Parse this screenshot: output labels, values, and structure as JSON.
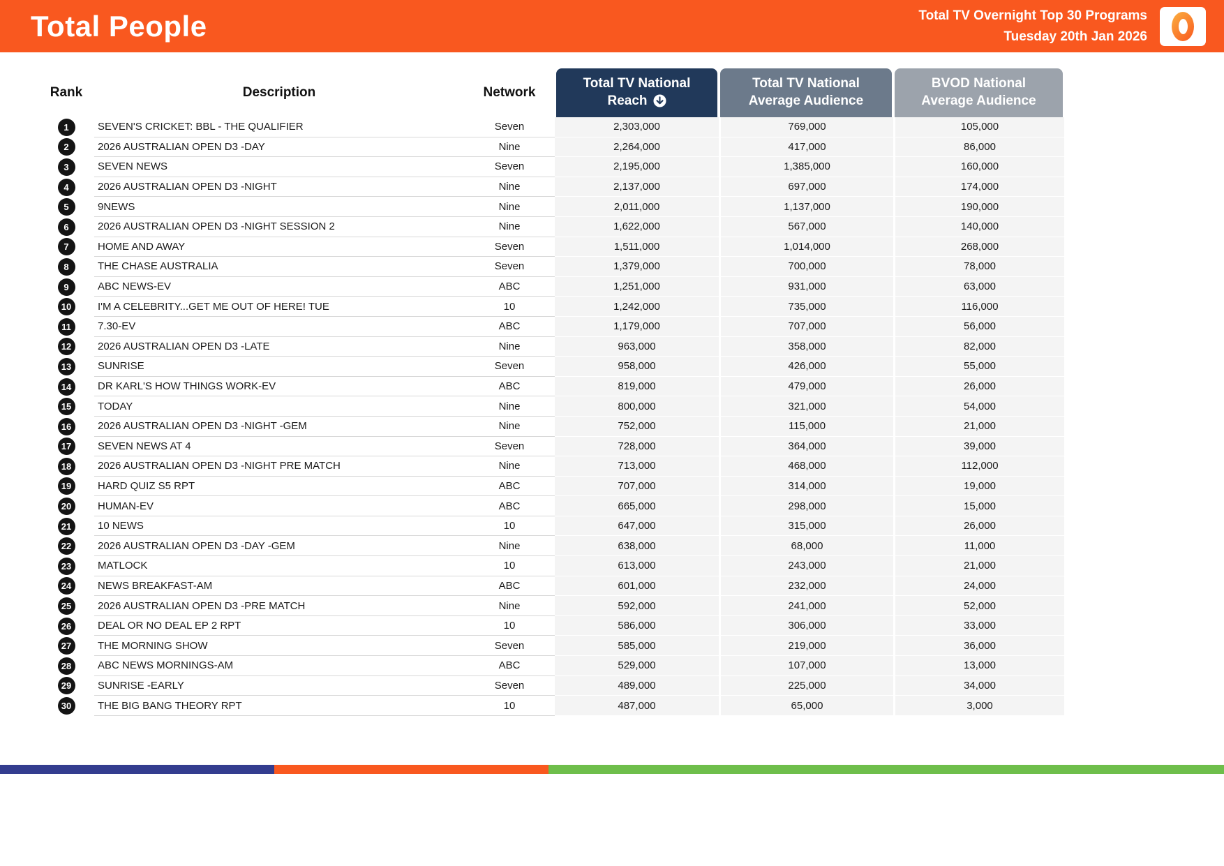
{
  "header": {
    "title": "Total People",
    "report_name": "Total TV Overnight Top 30 Programs",
    "report_date": "Tuesday 20th Jan 2026",
    "logo": "oztam-zero-logo"
  },
  "colors": {
    "orange": "#F9581F",
    "navy_header": "#21395A",
    "slate_header": "#6C7A8B",
    "gray_header": "#9CA3AC",
    "rank_badge": "#141414",
    "numeric_cell_bg": "#F4F4F4",
    "strip_navy": "#333D8F",
    "strip_orange": "#F9581F",
    "strip_green": "#6EBE4B"
  },
  "table": {
    "columns": {
      "rank": "Rank",
      "description": "Description",
      "network": "Network",
      "reach": {
        "line1": "Total TV National",
        "line2": "Reach"
      },
      "avg_audience": {
        "line1": "Total TV National",
        "line2": "Average Audience"
      },
      "bvod_audience": {
        "line1": "BVOD National",
        "line2": "Average Audience"
      }
    },
    "sort": {
      "column": "reach",
      "direction": "descending",
      "icon": "circle-arrow-down-icon"
    },
    "rows": [
      {
        "rank": 1,
        "description": "SEVEN'S CRICKET: BBL - THE QUALIFIER",
        "network": "Seven",
        "reach": "2,303,000",
        "avg": "769,000",
        "bvod": "105,000"
      },
      {
        "rank": 2,
        "description": "2026 AUSTRALIAN OPEN D3 -DAY",
        "network": "Nine",
        "reach": "2,264,000",
        "avg": "417,000",
        "bvod": "86,000"
      },
      {
        "rank": 3,
        "description": "SEVEN NEWS",
        "network": "Seven",
        "reach": "2,195,000",
        "avg": "1,385,000",
        "bvod": "160,000"
      },
      {
        "rank": 4,
        "description": "2026 AUSTRALIAN OPEN D3 -NIGHT",
        "network": "Nine",
        "reach": "2,137,000",
        "avg": "697,000",
        "bvod": "174,000"
      },
      {
        "rank": 5,
        "description": "9NEWS",
        "network": "Nine",
        "reach": "2,011,000",
        "avg": "1,137,000",
        "bvod": "190,000"
      },
      {
        "rank": 6,
        "description": "2026 AUSTRALIAN OPEN D3 -NIGHT SESSION 2",
        "network": "Nine",
        "reach": "1,622,000",
        "avg": "567,000",
        "bvod": "140,000"
      },
      {
        "rank": 7,
        "description": "HOME AND AWAY",
        "network": "Seven",
        "reach": "1,511,000",
        "avg": "1,014,000",
        "bvod": "268,000"
      },
      {
        "rank": 8,
        "description": "THE CHASE AUSTRALIA",
        "network": "Seven",
        "reach": "1,379,000",
        "avg": "700,000",
        "bvod": "78,000"
      },
      {
        "rank": 9,
        "description": "ABC NEWS-EV",
        "network": "ABC",
        "reach": "1,251,000",
        "avg": "931,000",
        "bvod": "63,000"
      },
      {
        "rank": 10,
        "description": "I'M A CELEBRITY...GET ME OUT OF HERE! TUE",
        "network": "10",
        "reach": "1,242,000",
        "avg": "735,000",
        "bvod": "116,000"
      },
      {
        "rank": 11,
        "description": "7.30-EV",
        "network": "ABC",
        "reach": "1,179,000",
        "avg": "707,000",
        "bvod": "56,000"
      },
      {
        "rank": 12,
        "description": "2026 AUSTRALIAN OPEN D3 -LATE",
        "network": "Nine",
        "reach": "963,000",
        "avg": "358,000",
        "bvod": "82,000"
      },
      {
        "rank": 13,
        "description": "SUNRISE",
        "network": "Seven",
        "reach": "958,000",
        "avg": "426,000",
        "bvod": "55,000"
      },
      {
        "rank": 14,
        "description": "DR KARL'S HOW THINGS WORK-EV",
        "network": "ABC",
        "reach": "819,000",
        "avg": "479,000",
        "bvod": "26,000"
      },
      {
        "rank": 15,
        "description": "TODAY",
        "network": "Nine",
        "reach": "800,000",
        "avg": "321,000",
        "bvod": "54,000"
      },
      {
        "rank": 16,
        "description": "2026 AUSTRALIAN OPEN D3 -NIGHT -GEM",
        "network": "Nine",
        "reach": "752,000",
        "avg": "115,000",
        "bvod": "21,000"
      },
      {
        "rank": 17,
        "description": "SEVEN NEWS AT 4",
        "network": "Seven",
        "reach": "728,000",
        "avg": "364,000",
        "bvod": "39,000"
      },
      {
        "rank": 18,
        "description": "2026 AUSTRALIAN OPEN D3 -NIGHT PRE MATCH",
        "network": "Nine",
        "reach": "713,000",
        "avg": "468,000",
        "bvod": "112,000"
      },
      {
        "rank": 19,
        "description": "HARD QUIZ S5 RPT",
        "network": "ABC",
        "reach": "707,000",
        "avg": "314,000",
        "bvod": "19,000"
      },
      {
        "rank": 20,
        "description": "HUMAN-EV",
        "network": "ABC",
        "reach": "665,000",
        "avg": "298,000",
        "bvod": "15,000"
      },
      {
        "rank": 21,
        "description": "10 NEWS",
        "network": "10",
        "reach": "647,000",
        "avg": "315,000",
        "bvod": "26,000"
      },
      {
        "rank": 22,
        "description": "2026 AUSTRALIAN OPEN D3 -DAY -GEM",
        "network": "Nine",
        "reach": "638,000",
        "avg": "68,000",
        "bvod": "11,000"
      },
      {
        "rank": 23,
        "description": "MATLOCK",
        "network": "10",
        "reach": "613,000",
        "avg": "243,000",
        "bvod": "21,000"
      },
      {
        "rank": 24,
        "description": "NEWS BREAKFAST-AM",
        "network": "ABC",
        "reach": "601,000",
        "avg": "232,000",
        "bvod": "24,000"
      },
      {
        "rank": 25,
        "description": "2026 AUSTRALIAN OPEN D3 -PRE MATCH",
        "network": "Nine",
        "reach": "592,000",
        "avg": "241,000",
        "bvod": "52,000"
      },
      {
        "rank": 26,
        "description": "DEAL OR NO DEAL EP 2 RPT",
        "network": "10",
        "reach": "586,000",
        "avg": "306,000",
        "bvod": "33,000"
      },
      {
        "rank": 27,
        "description": "THE MORNING SHOW",
        "network": "Seven",
        "reach": "585,000",
        "avg": "219,000",
        "bvod": "36,000"
      },
      {
        "rank": 28,
        "description": "ABC NEWS MORNINGS-AM",
        "network": "ABC",
        "reach": "529,000",
        "avg": "107,000",
        "bvod": "13,000"
      },
      {
        "rank": 29,
        "description": "SUNRISE -EARLY",
        "network": "Seven",
        "reach": "489,000",
        "avg": "225,000",
        "bvod": "34,000"
      },
      {
        "rank": 30,
        "description": "THE BIG BANG THEORY RPT",
        "network": "10",
        "reach": "487,000",
        "avg": "65,000",
        "bvod": "3,000"
      }
    ]
  },
  "footer": {
    "segments": [
      {
        "name": "navy",
        "color": "#333D8F",
        "width": "22.4%"
      },
      {
        "name": "orange",
        "color": "#F9581F",
        "width": "22.4%"
      },
      {
        "name": "green",
        "color": "#6EBE4B",
        "width": "55.2%"
      }
    ]
  }
}
